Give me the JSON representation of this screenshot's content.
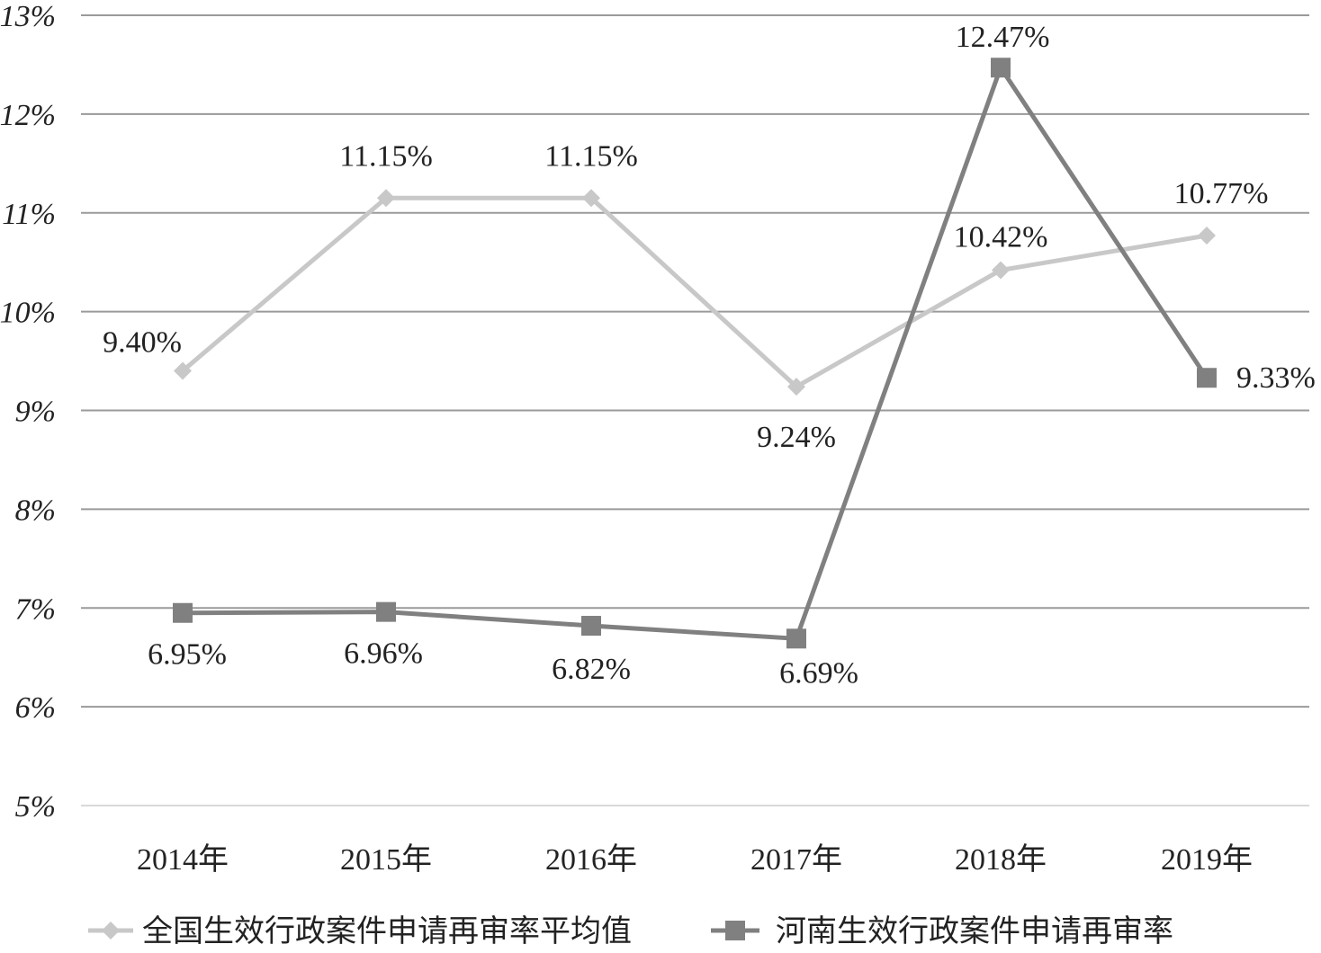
{
  "chart_data": {
    "type": "line",
    "categories": [
      "2014年",
      "2015年",
      "2016年",
      "2017年",
      "2018年",
      "2019年"
    ],
    "series": [
      {
        "name": "全国生效行政案件申请再审率平均值",
        "values": [
          9.4,
          11.15,
          11.15,
          9.24,
          10.42,
          10.77
        ],
        "labels": [
          "9.40%",
          "11.15%",
          "11.15%",
          "9.24%",
          "10.42%",
          "10.77%"
        ],
        "color": "#c8c8c8",
        "marker": "diamond"
      },
      {
        "name": "河南生效行政案件申请再审率",
        "values": [
          6.95,
          6.96,
          6.82,
          6.69,
          12.47,
          9.33
        ],
        "labels": [
          "6.95%",
          "6.96%",
          "6.82%",
          "6.69%",
          "12.47%",
          "9.33%"
        ],
        "color": "#808080",
        "marker": "square"
      }
    ],
    "y_ticks": [
      "5%",
      "6%",
      "7%",
      "8%",
      "9%",
      "10%",
      "11%",
      "12%",
      "13%"
    ],
    "ylim": [
      5,
      13
    ],
    "grid": true,
    "legend_position": "bottom",
    "colors": {
      "gridline": "#9a9a9a",
      "baseline": "#d9d9d9"
    }
  }
}
